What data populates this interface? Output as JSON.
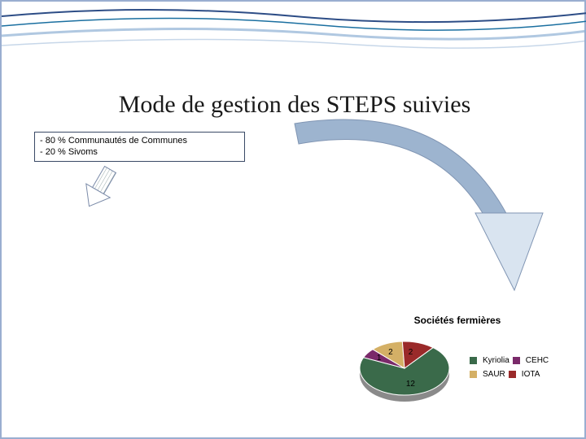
{
  "slide": {
    "title": "Mode de gestion des STEPS suivies",
    "border_color": "#9aaed0",
    "wave_colors": [
      "#2d4d86",
      "#1a6fa0",
      "#8fb0d4"
    ]
  },
  "info_box": {
    "line1": "- 80 % Communautés de Communes",
    "line2": "- 20 % Sivoms",
    "border_color": "#3a4a66",
    "font_size": 11
  },
  "small_arrow": {
    "fill": "#ffffff",
    "stroke": "#7a8aa8"
  },
  "big_arrow": {
    "fill": "#9db4cf",
    "stroke": "#8095b3",
    "head_fill": "#d9e4f0"
  },
  "pie_chart": {
    "type": "pie",
    "title": "Sociétés fermières",
    "title_fontsize": 12,
    "label_fontsize": 10,
    "series": [
      {
        "label": "Kyriolia",
        "value": 12,
        "color": "#3a6a4a"
      },
      {
        "label": "CEHC",
        "value": 1,
        "color": "#7a2a6a"
      },
      {
        "label": "SAUR",
        "value": 2,
        "color": "#d4b066"
      },
      {
        "label": "IOTA",
        "value": 2,
        "color": "#9a2a2a"
      }
    ],
    "background_color": "#ffffff",
    "side_color": "#8a8a8a",
    "height_3d": 8
  }
}
